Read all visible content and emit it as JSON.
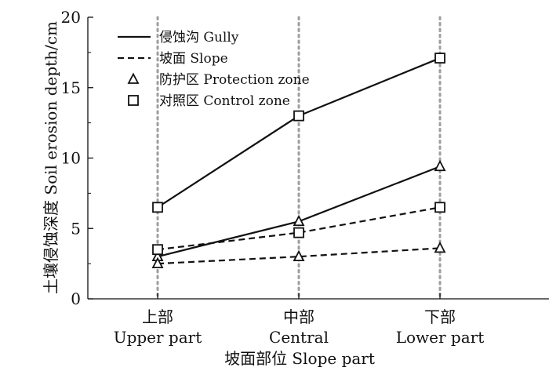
{
  "chart_data": {
    "type": "line",
    "title": "",
    "xlabel": "坡面部位 Slope part",
    "ylabel": "土壤侵蚀深度 Soil erosion depth/cm",
    "ylim": [
      0,
      20
    ],
    "yticks": [
      0,
      5,
      10,
      15,
      20
    ],
    "grid": "vertical dotted lines at each category",
    "legend_position": "top-left",
    "categories": [
      {
        "line1": "上部",
        "line2": "Upper part"
      },
      {
        "line1": "中部",
        "line2": "Central"
      },
      {
        "line1": "下部",
        "line2": "Lower part"
      }
    ],
    "legend": [
      {
        "label": "侵蚀沟 Gully",
        "kind": "line",
        "style": "solid"
      },
      {
        "label": "坡面 Slope",
        "kind": "line",
        "style": "dashed"
      },
      {
        "label": "防护区 Protection zone",
        "kind": "marker",
        "marker": "triangle"
      },
      {
        "label": "对照区 Control zone",
        "kind": "marker",
        "marker": "square"
      }
    ],
    "series": [
      {
        "line": "solid",
        "marker": "square",
        "values": [
          6.5,
          13.0,
          17.1
        ]
      },
      {
        "line": "solid",
        "marker": "triangle",
        "values": [
          3.0,
          5.5,
          9.4
        ]
      },
      {
        "line": "dashed",
        "marker": "square",
        "values": [
          3.5,
          4.7,
          6.5
        ]
      },
      {
        "line": "dashed",
        "marker": "triangle",
        "values": [
          2.5,
          3.0,
          3.6
        ]
      }
    ],
    "colors": {
      "ink": "#111111",
      "grid": "#9e9e9e"
    }
  }
}
